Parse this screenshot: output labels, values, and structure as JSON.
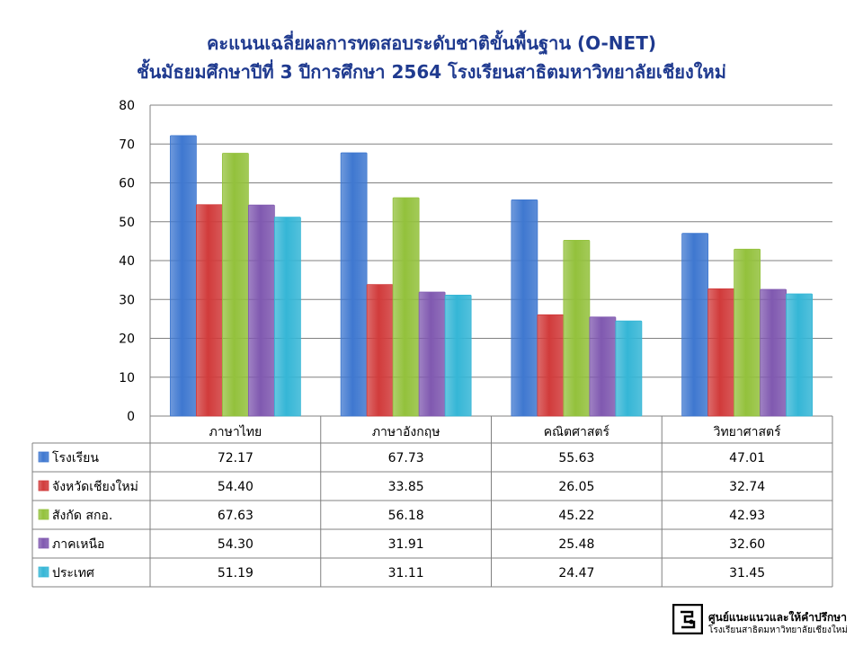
{
  "title_line1": "คะแนนเฉลี่ยผลการทดสอบระดับชาติขั้นพื้นฐาน (O-NET)",
  "title_line2": "ชั้นมัธยมศึกษาปีที่ 3 ปีการศึกษา 2564 โรงเรียนสาธิตมหาวิทยาลัยเชียงใหม่",
  "logo": {
    "line1": "ศูนย์แนะแนวและให้คำปรึกษา",
    "line2": "โรงเรียนสาธิตมหาวิทยาลัยเชียงใหม่"
  },
  "chart_data": {
    "type": "bar",
    "title": "คะแนนเฉลี่ยผลการทดสอบระดับชาติขั้นพื้นฐาน (O-NET) ชั้นมัธยมศึกษาปีที่ 3 ปีการศึกษา 2564 โรงเรียนสาธิตมหาวิทยาลัยเชียงใหม่",
    "categories": [
      "ภาษาไทย",
      "ภาษาอังกฤษ",
      "คณิตศาสตร์",
      "วิทยาศาสตร์"
    ],
    "ylim": [
      0,
      80
    ],
    "yticks": [
      0,
      10,
      20,
      30,
      40,
      50,
      60,
      70,
      80
    ],
    "grid": true,
    "legend": "data-table",
    "series": [
      {
        "name": "โรงเรียน",
        "color": "#3f78d0",
        "values": [
          72.17,
          67.73,
          55.63,
          47.01
        ],
        "labels": [
          "72.17",
          "67.73",
          "55.63",
          "47.01"
        ]
      },
      {
        "name": "จังหวัดเชียงใหม่",
        "color": "#d13b3b",
        "values": [
          54.4,
          33.85,
          26.05,
          32.74
        ],
        "labels": [
          "54.40",
          "33.85",
          "26.05",
          "32.74"
        ]
      },
      {
        "name": "สังกัด สกอ.",
        "color": "#93c13c",
        "values": [
          67.63,
          56.18,
          45.22,
          42.93
        ],
        "labels": [
          "67.63",
          "56.18",
          "45.22",
          "42.93"
        ]
      },
      {
        "name": "ภาคเหนือ",
        "color": "#8059b0",
        "values": [
          54.3,
          31.91,
          25.48,
          32.6
        ],
        "labels": [
          "54.30",
          "31.91",
          "25.48",
          "32.60"
        ]
      },
      {
        "name": "ประเทศ",
        "color": "#35b6d6",
        "values": [
          51.19,
          31.11,
          24.47,
          31.45
        ],
        "labels": [
          "51.19",
          "31.11",
          "24.47",
          "31.45"
        ]
      }
    ]
  }
}
